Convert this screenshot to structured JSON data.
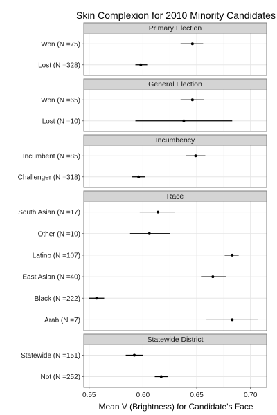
{
  "chart_data": {
    "type": "dot-errorbar",
    "title": "Skin Complexion for 2010 Minority Candidates",
    "xlabel": "Mean V (Brightness) for Candidate's Face",
    "ylabel": "",
    "xlim": [
      0.545,
      0.715
    ],
    "xticks": [
      0.55,
      0.6,
      0.65,
      0.7
    ],
    "xtick_labels": [
      "0.55",
      "0.60",
      "0.65",
      "0.70"
    ],
    "grid": true,
    "facets": [
      {
        "name": "Primary Election",
        "rows": [
          {
            "label": "Won (N =75)",
            "mean": 0.646,
            "low": 0.635,
            "high": 0.656
          },
          {
            "label": "Lost (N =328)",
            "mean": 0.598,
            "low": 0.593,
            "high": 0.604
          }
        ]
      },
      {
        "name": "General Election",
        "rows": [
          {
            "label": "Won (N =65)",
            "mean": 0.646,
            "low": 0.635,
            "high": 0.657
          },
          {
            "label": "Lost (N =10)",
            "mean": 0.638,
            "low": 0.593,
            "high": 0.683
          }
        ]
      },
      {
        "name": "Incumbency",
        "rows": [
          {
            "label": "Incumbent (N =85)",
            "mean": 0.649,
            "low": 0.64,
            "high": 0.658
          },
          {
            "label": "Challenger (N =318)",
            "mean": 0.596,
            "low": 0.59,
            "high": 0.602
          }
        ]
      },
      {
        "name": "Race",
        "rows": [
          {
            "label": "South Asian (N =17)",
            "mean": 0.614,
            "low": 0.597,
            "high": 0.63
          },
          {
            "label": "Other (N =10)",
            "mean": 0.606,
            "low": 0.588,
            "high": 0.625
          },
          {
            "label": "Latino (N =107)",
            "mean": 0.683,
            "low": 0.676,
            "high": 0.689
          },
          {
            "label": "East Asian (N =40)",
            "mean": 0.665,
            "low": 0.654,
            "high": 0.677
          },
          {
            "label": "Black (N =222)",
            "mean": 0.557,
            "low": 0.55,
            "high": 0.564
          },
          {
            "label": "Arab (N =7)",
            "mean": 0.683,
            "low": 0.659,
            "high": 0.707
          }
        ]
      },
      {
        "name": "Statewide District",
        "rows": [
          {
            "label": "Statewide (N =151)",
            "mean": 0.592,
            "low": 0.584,
            "high": 0.6
          },
          {
            "label": "Not (N =252)",
            "mean": 0.617,
            "low": 0.611,
            "high": 0.623
          }
        ]
      }
    ]
  },
  "colors": {
    "panel_background": "#ffffff",
    "panel_border": "#7f7f7f",
    "strip_fill": "#d4d4d4",
    "grid_major": "#e6e6e6",
    "grid_minor": "#f2f2f2",
    "points": "#000000"
  }
}
